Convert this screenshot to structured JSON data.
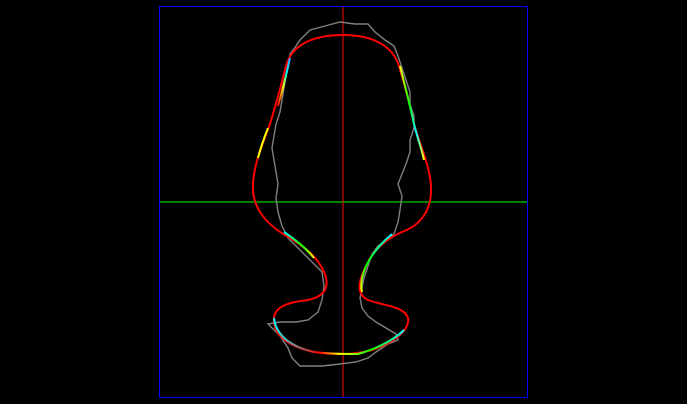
{
  "colors": {
    "background": "#000000",
    "frame": "#0000ff",
    "horizontal_axis": "#00ff00",
    "vertical_axis": "#ff0000",
    "measured_contour": "#808080",
    "fitted_contour_base": "#ff0000",
    "highlight_segments": [
      "#ffff00",
      "#00ff00",
      "#00ffff",
      "#3399ff"
    ]
  },
  "layers": [
    {
      "name": "frame"
    },
    {
      "name": "horizontal-axis"
    },
    {
      "name": "vertical-axis"
    },
    {
      "name": "measured-contour"
    },
    {
      "name": "fitted-contour"
    }
  ]
}
